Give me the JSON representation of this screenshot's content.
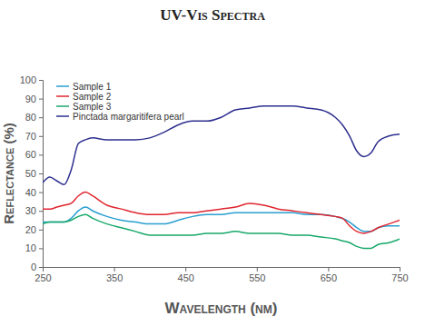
{
  "chart_data": {
    "type": "line",
    "title": "UV-Vis Spectra",
    "x_label": "Wavelength (nm)",
    "y_label": "Reflectance (%)",
    "x": [
      250,
      260,
      270,
      280,
      290,
      300,
      310,
      320,
      340,
      360,
      380,
      400,
      420,
      440,
      460,
      480,
      500,
      520,
      540,
      560,
      580,
      600,
      620,
      640,
      660,
      670,
      680,
      690,
      700,
      710,
      720,
      735,
      750
    ],
    "series": [
      {
        "name": "Sample 1",
        "color": "#2a9fd0",
        "values": [
          24,
          24,
          24,
          24,
          26,
          30,
          32,
          30,
          27,
          25,
          24,
          23,
          23,
          25,
          27,
          28,
          28,
          29,
          29,
          29,
          29,
          29,
          28,
          28,
          27,
          26,
          24,
          21,
          19,
          19,
          21,
          22,
          22
        ]
      },
      {
        "name": "Sample 2",
        "color": "#e0262f",
        "values": [
          31,
          31,
          32,
          33,
          34,
          38,
          40,
          38,
          33,
          31,
          29,
          28,
          28,
          29,
          29,
          30,
          31,
          32,
          34,
          33,
          31,
          30,
          29,
          28,
          27,
          26,
          22,
          19,
          18,
          19,
          21,
          23,
          25
        ]
      },
      {
        "name": "Sample 3",
        "color": "#17a86a",
        "values": [
          23,
          24,
          24,
          24,
          25,
          27,
          28,
          26,
          23,
          21,
          19,
          17,
          17,
          17,
          17,
          18,
          18,
          19,
          18,
          18,
          18,
          17,
          17,
          16,
          15,
          14,
          13,
          11,
          10,
          10,
          12,
          13,
          15
        ]
      },
      {
        "name": "Pinctada margaritifera pearl",
        "color": "#2e2f8f",
        "values": [
          45,
          48,
          46,
          44,
          52,
          66,
          68,
          69,
          68,
          68,
          68,
          69,
          72,
          76,
          78,
          78,
          80,
          84,
          85,
          86,
          86,
          86,
          85,
          84,
          80,
          76,
          70,
          62,
          59,
          61,
          67,
          70,
          71
        ]
      }
    ],
    "xlim": [
      250,
      750
    ],
    "xticks": [
      250,
      350,
      450,
      550,
      650,
      750
    ],
    "ylim": [
      0,
      100
    ],
    "yticks": [
      0,
      10,
      20,
      30,
      40,
      50,
      60,
      70,
      80,
      90,
      100
    ],
    "grid": false,
    "legend": "upper left"
  }
}
